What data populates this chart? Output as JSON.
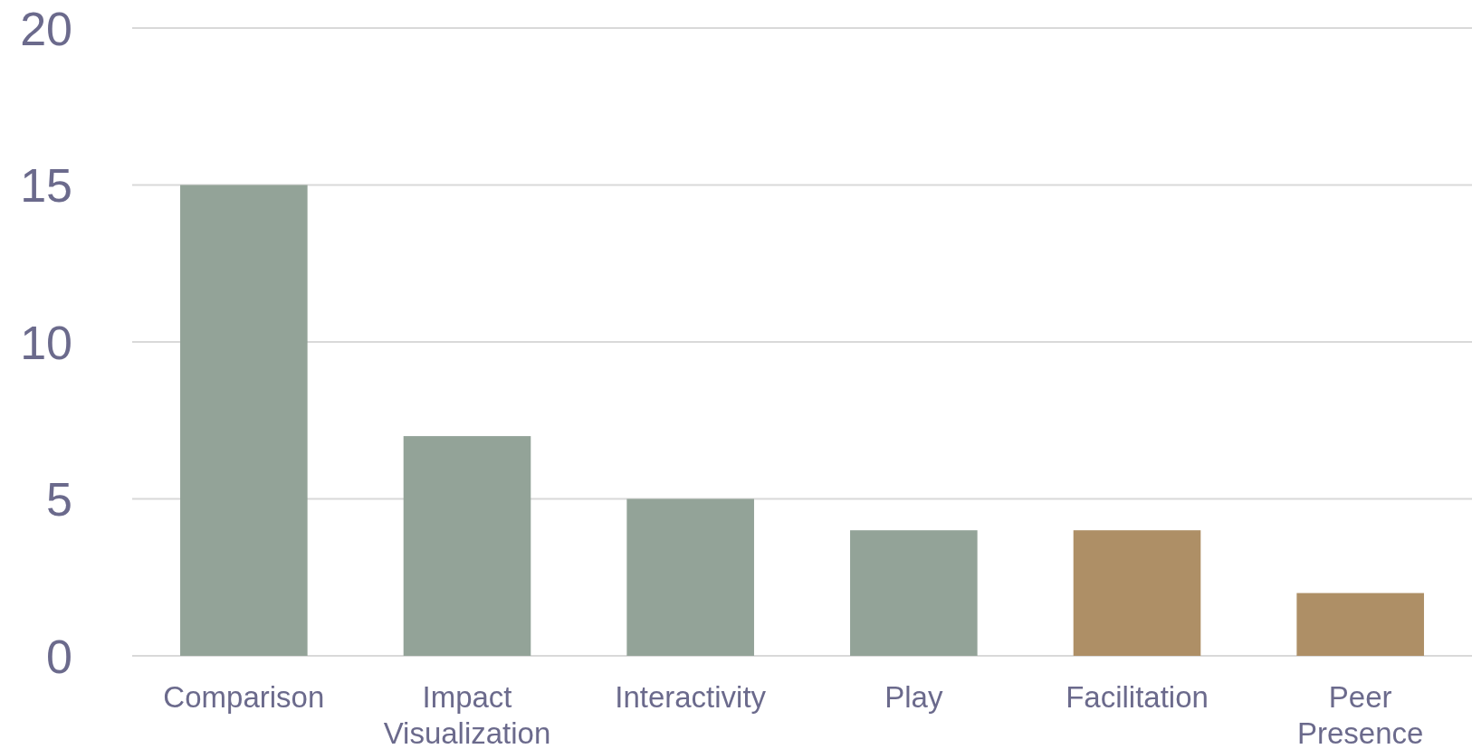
{
  "chart_data": {
    "type": "bar",
    "categories": [
      "Comparison",
      "Impact Visualization",
      "Interactivity",
      "Play",
      "Facilitation",
      "Peer Presence"
    ],
    "values": [
      15,
      7,
      5,
      4,
      4,
      2
    ],
    "colors": [
      "#93a398",
      "#93a398",
      "#93a398",
      "#93a398",
      "#ae8f66",
      "#ae8f66"
    ],
    "ylim": [
      0,
      20
    ],
    "yticks": [
      0,
      5,
      10,
      15,
      20
    ],
    "grid": "y"
  }
}
